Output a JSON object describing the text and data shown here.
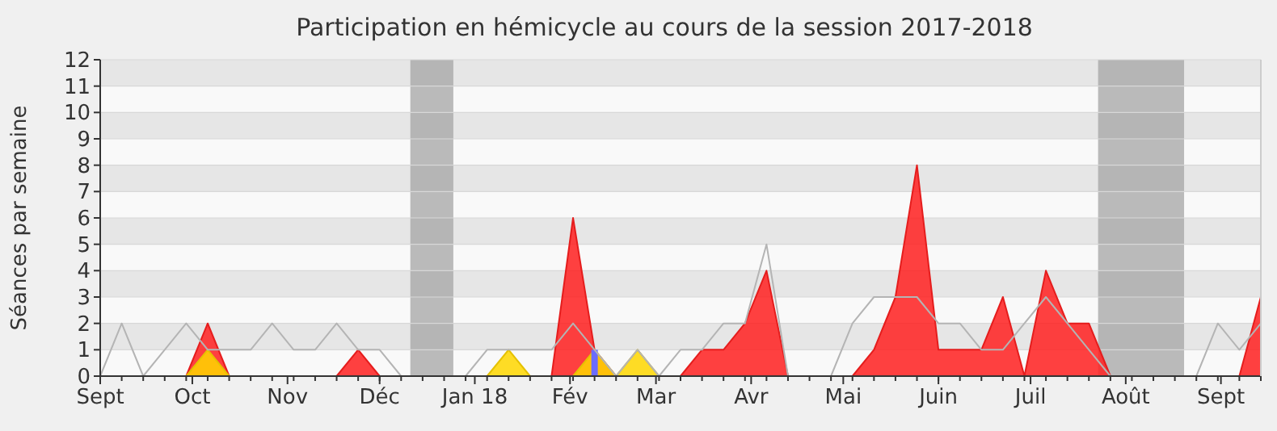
{
  "chart_data": {
    "type": "area",
    "title": "Participation en hémicycle au cours de la session 2017-2018",
    "ylabel": "Séances par semaine",
    "x": [
      "2017-09-01",
      "2017-09-08",
      "2017-09-15",
      "2017-09-22",
      "2017-09-29",
      "2017-10-06",
      "2017-10-13",
      "2017-10-20",
      "2017-10-27",
      "2017-11-03",
      "2017-11-10",
      "2017-11-17",
      "2017-11-24",
      "2017-12-01",
      "2017-12-08",
      "2017-12-15",
      "2017-12-22",
      "2017-12-29",
      "2018-01-05",
      "2018-01-12",
      "2018-01-19",
      "2018-01-26",
      "2018-02-02",
      "2018-02-09",
      "2018-02-16",
      "2018-02-23",
      "2018-03-02",
      "2018-03-09",
      "2018-03-16",
      "2018-03-23",
      "2018-03-30",
      "2018-04-06",
      "2018-04-13",
      "2018-04-20",
      "2018-04-27",
      "2018-05-04",
      "2018-05-11",
      "2018-05-18",
      "2018-05-25",
      "2018-06-01",
      "2018-06-08",
      "2018-06-15",
      "2018-06-22",
      "2018-06-29",
      "2018-07-06",
      "2018-07-13",
      "2018-07-20",
      "2018-07-27",
      "2018-08-03",
      "2018-08-10",
      "2018-08-17",
      "2018-08-24",
      "2018-08-31",
      "2018-09-07",
      "2018-09-14"
    ],
    "series": [
      {
        "type": "line",
        "color": "#b4b4b4",
        "values": [
          0,
          2,
          0,
          1,
          2,
          1,
          1,
          1,
          2,
          1,
          1,
          2,
          1,
          1,
          0,
          0,
          0,
          0,
          1,
          1,
          1,
          1,
          2,
          1,
          0,
          1,
          0,
          1,
          1,
          2,
          2,
          5,
          0,
          0,
          0,
          2,
          3,
          3,
          3,
          2,
          2,
          1,
          1,
          2,
          3,
          2,
          1,
          0,
          0,
          0,
          0,
          0,
          2,
          1,
          2
        ]
      },
      {
        "color": "#ff2020",
        "values": [
          0,
          0,
          0,
          0,
          0,
          2,
          0,
          0,
          0,
          0,
          0,
          0,
          1,
          0,
          0,
          0,
          0,
          0,
          0,
          0,
          0,
          0,
          6,
          1,
          0,
          0,
          0,
          0,
          1,
          1,
          2,
          4,
          0,
          0,
          0,
          0,
          1,
          3,
          8,
          1,
          1,
          1,
          3,
          0,
          4,
          2,
          2,
          0,
          0,
          0,
          0,
          0,
          0,
          0,
          3
        ]
      },
      {
        "color": "#ffd700",
        "values": [
          0,
          0,
          0,
          0,
          0,
          1,
          0,
          0,
          0,
          0,
          0,
          0,
          0,
          0,
          0,
          0,
          0,
          0,
          0,
          1,
          0,
          0,
          0,
          1,
          0,
          1,
          0,
          0,
          0,
          0,
          0,
          0,
          0,
          0,
          0,
          0,
          0,
          0,
          0,
          0,
          0,
          0,
          0,
          0,
          0,
          0,
          0,
          0,
          0,
          0,
          0,
          0,
          0,
          0,
          0
        ]
      },
      {
        "type": "bar",
        "color": "#6b6bff",
        "x": [
          "2018-02-09"
        ],
        "values": [
          1
        ]
      }
    ],
    "xlim": [
      "2017-09-01",
      "2018-09-14"
    ],
    "ylim": [
      0,
      12
    ],
    "yticks": [
      0,
      1,
      2,
      3,
      4,
      5,
      6,
      7,
      8,
      9,
      10,
      11,
      12
    ],
    "xticks": [
      {
        "value": "2017-09-01",
        "label": "Sept"
      },
      {
        "value": "2017-10-01",
        "label": "Oct"
      },
      {
        "value": "2017-11-01",
        "label": "Nov"
      },
      {
        "value": "2017-12-01",
        "label": "Déc"
      },
      {
        "value": "2018-01-01",
        "label": "Jan 18"
      },
      {
        "value": "2018-02-01",
        "label": "Fév"
      },
      {
        "value": "2018-03-01",
        "label": "Mar"
      },
      {
        "value": "2018-04-01",
        "label": "Avr"
      },
      {
        "value": "2018-05-01",
        "label": "Mai"
      },
      {
        "value": "2018-06-01",
        "label": "Juin"
      },
      {
        "value": "2018-07-01",
        "label": "Juil"
      },
      {
        "value": "2018-08-01",
        "label": "Août"
      },
      {
        "value": "2018-09-01",
        "label": "Sept"
      }
    ],
    "bands": [
      {
        "axis": "x",
        "from": "2017-12-11",
        "to": "2017-12-25",
        "color": "#a0a0a0"
      },
      {
        "axis": "x",
        "from": "2018-07-23",
        "to": "2018-08-20",
        "color": "#a0a0a0"
      }
    ],
    "grid": "y"
  }
}
